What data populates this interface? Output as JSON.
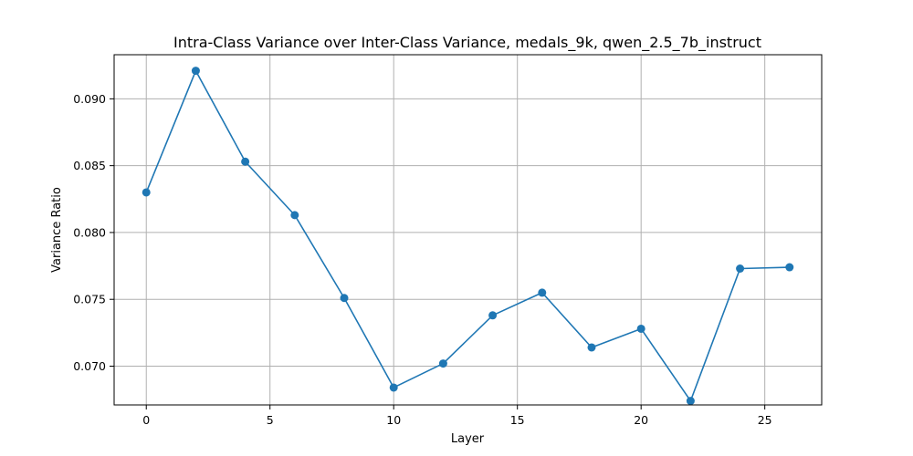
{
  "chart_data": {
    "type": "line",
    "title": "Intra-Class Variance over Inter-Class Variance, medals_9k, qwen_2.5_7b_instruct",
    "xlabel": "Layer",
    "ylabel": "Variance Ratio",
    "xlim": [
      -1.3,
      27.3
    ],
    "ylim": [
      0.0671,
      0.0933
    ],
    "xticks": [
      0,
      5,
      10,
      15,
      20,
      25
    ],
    "xtick_labels": [
      "0",
      "5",
      "10",
      "15",
      "20",
      "25"
    ],
    "yticks": [
      0.07,
      0.075,
      0.08,
      0.085,
      0.09
    ],
    "ytick_labels": [
      "0.070",
      "0.075",
      "0.080",
      "0.085",
      "0.090"
    ],
    "grid": true,
    "series": [
      {
        "color": "#1f77b4",
        "marker": "circle",
        "x": [
          0,
          2,
          4,
          6,
          8,
          10,
          12,
          14,
          16,
          18,
          20,
          22,
          24,
          26
        ],
        "y": [
          0.083,
          0.0921,
          0.0853,
          0.0813,
          0.0751,
          0.0684,
          0.0702,
          0.0738,
          0.0755,
          0.0714,
          0.0728,
          0.0674,
          0.0773,
          0.0774
        ]
      }
    ]
  }
}
